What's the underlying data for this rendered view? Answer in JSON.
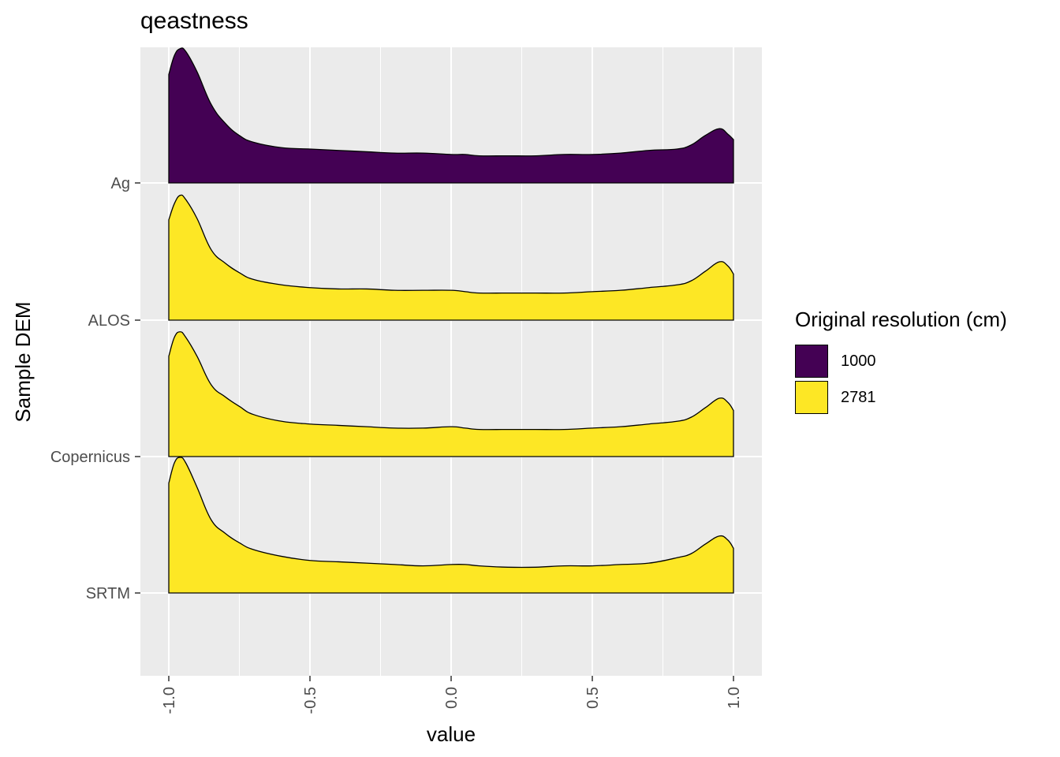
{
  "chart_data": {
    "type": "area",
    "subtype": "ridgeline-density",
    "title": "qeastness",
    "xlabel": "value",
    "ylabel": "Sample DEM",
    "xlim": [
      -1.05,
      1.05
    ],
    "x_ticks": [
      -1.0,
      -0.5,
      0.0,
      0.5,
      1.0
    ],
    "x_tick_labels": [
      "-1.0",
      "-0.5",
      "0.0",
      "0.5",
      "1.0"
    ],
    "y_categories": [
      "SRTM",
      "Copernicus",
      "ALOS",
      "Ag"
    ],
    "grid": true,
    "legend": {
      "title": "Original resolution (cm)",
      "position": "right",
      "entries": [
        {
          "label": "1000",
          "color": "#440154"
        },
        {
          "label": "2781",
          "color": "#FDE725"
        }
      ]
    },
    "x": [
      -1.0,
      -0.98,
      -0.96,
      -0.94,
      -0.9,
      -0.85,
      -0.8,
      -0.75,
      -0.7,
      -0.6,
      -0.5,
      -0.4,
      -0.3,
      -0.2,
      -0.1,
      0.0,
      0.05,
      0.1,
      0.2,
      0.3,
      0.4,
      0.5,
      0.6,
      0.7,
      0.8,
      0.85,
      0.9,
      0.95,
      0.98,
      1.0
    ],
    "series": [
      {
        "name": "Ag",
        "resolution": "1000",
        "color": "#440154",
        "values": [
          0.8,
          0.94,
          0.99,
          0.97,
          0.82,
          0.58,
          0.44,
          0.35,
          0.3,
          0.26,
          0.25,
          0.24,
          0.23,
          0.22,
          0.22,
          0.21,
          0.21,
          0.2,
          0.2,
          0.2,
          0.21,
          0.21,
          0.22,
          0.24,
          0.25,
          0.28,
          0.35,
          0.4,
          0.36,
          0.32
        ]
      },
      {
        "name": "ALOS",
        "resolution": "2781",
        "color": "#FDE725",
        "values": [
          0.74,
          0.86,
          0.92,
          0.89,
          0.75,
          0.52,
          0.42,
          0.35,
          0.3,
          0.26,
          0.24,
          0.23,
          0.23,
          0.22,
          0.22,
          0.22,
          0.21,
          0.2,
          0.2,
          0.2,
          0.2,
          0.21,
          0.22,
          0.24,
          0.26,
          0.29,
          0.36,
          0.43,
          0.4,
          0.34
        ]
      },
      {
        "name": "Copernicus",
        "resolution": "2781",
        "color": "#FDE725",
        "values": [
          0.74,
          0.88,
          0.92,
          0.88,
          0.74,
          0.53,
          0.44,
          0.37,
          0.31,
          0.26,
          0.24,
          0.23,
          0.22,
          0.21,
          0.21,
          0.22,
          0.21,
          0.2,
          0.2,
          0.2,
          0.2,
          0.21,
          0.22,
          0.24,
          0.26,
          0.29,
          0.36,
          0.43,
          0.4,
          0.34
        ]
      },
      {
        "name": "SRTM",
        "resolution": "2781",
        "color": "#FDE725",
        "values": [
          0.81,
          0.96,
          1.0,
          0.96,
          0.78,
          0.54,
          0.44,
          0.37,
          0.32,
          0.27,
          0.24,
          0.23,
          0.22,
          0.21,
          0.2,
          0.21,
          0.21,
          0.2,
          0.19,
          0.19,
          0.2,
          0.2,
          0.21,
          0.22,
          0.26,
          0.29,
          0.36,
          0.42,
          0.39,
          0.33
        ]
      }
    ]
  }
}
